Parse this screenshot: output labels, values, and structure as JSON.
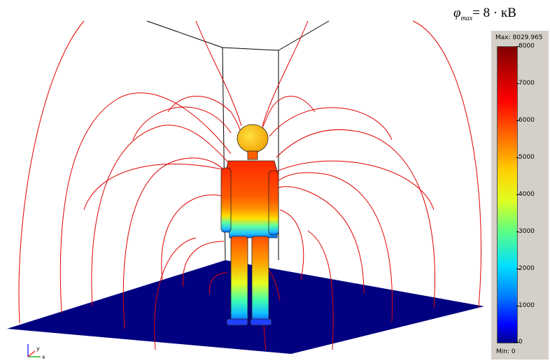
{
  "formula": {
    "symbol": "φ",
    "subscript": "max",
    "rest": "= 8 · кВ"
  },
  "colorbar": {
    "max_label": "Max: 8029.965",
    "min_label": "Min: 0",
    "ticks": [
      "8000",
      "7000",
      "6000",
      "5000",
      "4000",
      "3000",
      "2000",
      "1000",
      "0"
    ]
  },
  "axes": {
    "x": "x",
    "y": "y"
  }
}
